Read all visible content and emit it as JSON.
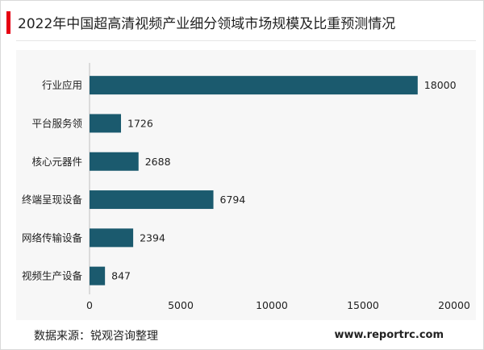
{
  "header": {
    "title": "2022年中国超高清视频产业细分领域市场规模及比重预测情况"
  },
  "footer": {
    "source": "数据来源：锐观咨询整理",
    "site": "www.reportrc.com"
  },
  "colors": {
    "bar": "#1b5a6e",
    "accent": "#e60012"
  },
  "chart_data": {
    "type": "bar",
    "orientation": "horizontal",
    "title": "2022年中国超高清视频产业细分领域市场规模及比重预测情况",
    "categories": [
      "行业应用",
      "平台服务领",
      "核心元器件",
      "终端呈现设备",
      "网络传输设备",
      "视频生产设备"
    ],
    "values": [
      18000,
      1726,
      2688,
      6794,
      2394,
      847
    ],
    "xlim": [
      0,
      20000
    ],
    "xticks": [
      0,
      5000,
      10000,
      15000,
      20000
    ],
    "grid": false,
    "legend": "none"
  }
}
